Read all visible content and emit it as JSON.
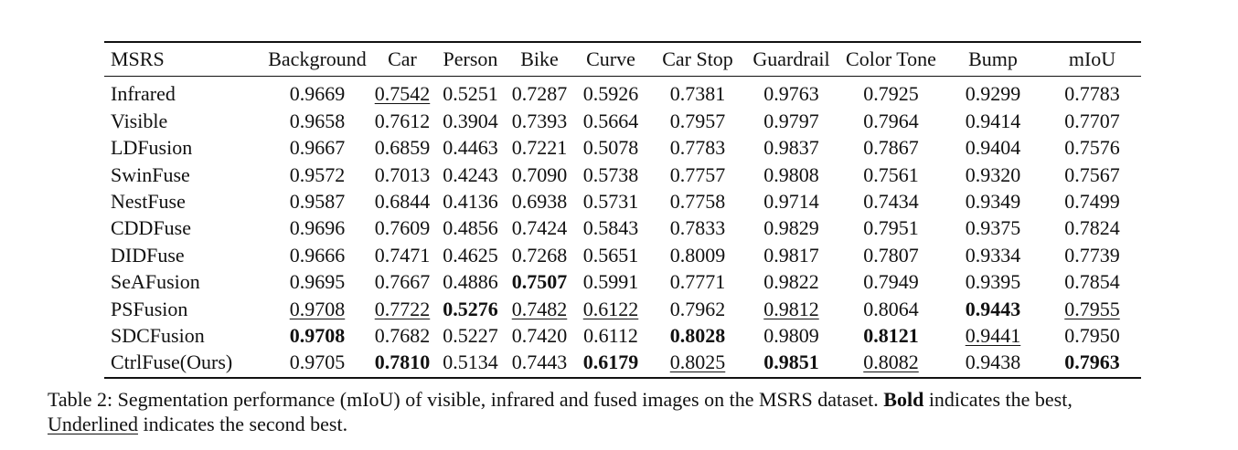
{
  "table": {
    "headers": [
      "MSRS",
      "Background",
      "Car",
      "Person",
      "Bike",
      "Curve",
      "Car Stop",
      "Guardrail",
      "Color Tone",
      "Bump",
      "mIoU"
    ],
    "rows": [
      {
        "name": "Infrared",
        "values": [
          "0.9669",
          "0.7542",
          "0.5251",
          "0.7287",
          "0.5926",
          "0.7381",
          "0.9763",
          "0.7925",
          "0.9299",
          "0.7783"
        ],
        "bold": [],
        "underline": [
          2
        ]
      },
      {
        "name": "Visible",
        "values": [
          "0.9658",
          "0.7612",
          "0.3904",
          "0.7393",
          "0.5664",
          "0.7957",
          "0.9797",
          "0.7964",
          "0.9414",
          "0.7707"
        ],
        "bold": [],
        "underline": []
      },
      {
        "name": "LDFusion",
        "values": [
          "0.9667",
          "0.6859",
          "0.4463",
          "0.7221",
          "0.5078",
          "0.7783",
          "0.9837",
          "0.7867",
          "0.9404",
          "0.7576"
        ],
        "bold": [],
        "underline": []
      },
      {
        "name": "SwinFuse",
        "values": [
          "0.9572",
          "0.7013",
          "0.4243",
          "0.7090",
          "0.5738",
          "0.7757",
          "0.9808",
          "0.7561",
          "0.9320",
          "0.7567"
        ],
        "bold": [],
        "underline": []
      },
      {
        "name": "NestFuse",
        "values": [
          "0.9587",
          "0.6844",
          "0.4136",
          "0.6938",
          "0.5731",
          "0.7758",
          "0.9714",
          "0.7434",
          "0.9349",
          "0.7499"
        ],
        "bold": [],
        "underline": []
      },
      {
        "name": "CDDFuse",
        "values": [
          "0.9696",
          "0.7609",
          "0.4856",
          "0.7424",
          "0.5843",
          "0.7833",
          "0.9829",
          "0.7951",
          "0.9375",
          "0.7824"
        ],
        "bold": [],
        "underline": []
      },
      {
        "name": "DIDFuse",
        "values": [
          "0.9666",
          "0.7471",
          "0.4625",
          "0.7268",
          "0.5651",
          "0.8009",
          "0.9817",
          "0.7807",
          "0.9334",
          "0.7739"
        ],
        "bold": [],
        "underline": []
      },
      {
        "name": "SeAFusion",
        "values": [
          "0.9695",
          "0.7667",
          "0.4886",
          "0.7507",
          "0.5991",
          "0.7771",
          "0.9822",
          "0.7949",
          "0.9395",
          "0.7854"
        ],
        "bold": [
          4
        ],
        "underline": []
      },
      {
        "name": "PSFusion",
        "values": [
          "0.9708",
          "0.7722",
          "0.5276",
          "0.7482",
          "0.6122",
          "0.7962",
          "0.9812",
          "0.8064",
          "0.9443",
          "0.7955"
        ],
        "bold": [
          3,
          9
        ],
        "underline": [
          1,
          2,
          4,
          5,
          7,
          10
        ]
      },
      {
        "name": "SDCFusion",
        "values": [
          "0.9708",
          "0.7682",
          "0.5227",
          "0.7420",
          "0.6112",
          "0.8028",
          "0.9809",
          "0.8121",
          "0.9441",
          "0.7950"
        ],
        "bold": [
          1,
          6,
          8
        ],
        "underline": [
          9
        ]
      },
      {
        "name": "CtrlFuse(Ours)",
        "values": [
          "0.9705",
          "0.7810",
          "0.5134",
          "0.7443",
          "0.6179",
          "0.8025",
          "0.9851",
          "0.8082",
          "0.9438",
          "0.7963"
        ],
        "bold": [
          2,
          5,
          7,
          10
        ],
        "underline": [
          6,
          8
        ]
      }
    ]
  },
  "caption": {
    "part1": "Table 2: Segmentation performance (mIoU) of visible, infrared and fused images on the MSRS dataset. ",
    "bold_word": "Bold",
    "part2": " indicates the best,",
    "underlined_word": "Underlined",
    "part3": " indicates the second best."
  }
}
